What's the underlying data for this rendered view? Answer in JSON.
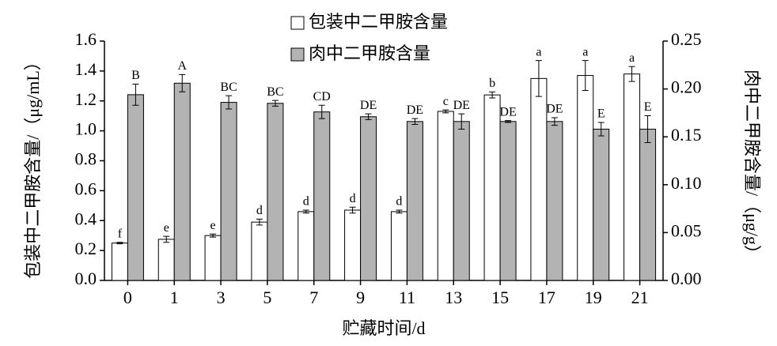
{
  "chart_data": {
    "type": "bar",
    "x_label": "贮藏时间/d",
    "y_label": "包装中二甲胺含量/（μg/mL）",
    "y2_label": "肉中二甲胺含量/（μg/g）",
    "categories": [
      "0",
      "1",
      "3",
      "5",
      "7",
      "9",
      "11",
      "13",
      "15",
      "17",
      "19",
      "21"
    ],
    "series": [
      {
        "name": "包装中二甲胺含量",
        "color": "#ffffff",
        "axis": "y",
        "values": [
          0.25,
          0.275,
          0.3,
          0.39,
          0.46,
          0.47,
          0.46,
          1.13,
          1.24,
          1.35,
          1.37,
          1.38
        ],
        "errors": [
          0.005,
          0.02,
          0.01,
          0.02,
          0.01,
          0.02,
          0.01,
          0.01,
          0.02,
          0.12,
          0.1,
          0.05
        ],
        "letters": [
          "f",
          "e",
          "e",
          "d",
          "d",
          "d",
          "d",
          "c",
          "b",
          "a",
          "a",
          "a"
        ]
      },
      {
        "name": "肉中二甲胺含量",
        "color": "#b3b3b3",
        "axis": "y2",
        "values": [
          0.194,
          0.206,
          0.186,
          0.185,
          0.176,
          0.171,
          0.166,
          0.166,
          0.166,
          0.166,
          0.158,
          0.158
        ],
        "errors": [
          0.011,
          0.009,
          0.007,
          0.003,
          0.007,
          0.003,
          0.003,
          0.008,
          0.001,
          0.004,
          0.007,
          0.014
        ],
        "letters": [
          "B",
          "A",
          "BC",
          "BC",
          "CD",
          "DE",
          "DE",
          "DE",
          "DE",
          "DE",
          "E",
          "E"
        ]
      }
    ],
    "ylim": [
      0,
      1.6
    ],
    "yticks": [
      {
        "value": 0,
        "label": "0.0"
      },
      {
        "value": 0.2,
        "label": "0.2"
      },
      {
        "value": 0.4,
        "label": "0.4"
      },
      {
        "value": 0.6,
        "label": "0.6"
      },
      {
        "value": 0.8,
        "label": "0.8"
      },
      {
        "value": 1.0,
        "label": "1.0"
      },
      {
        "value": 1.2,
        "label": "1.2"
      },
      {
        "value": 1.4,
        "label": "1.4"
      },
      {
        "value": 1.6,
        "label": "1.6"
      }
    ],
    "y2lim": [
      0,
      0.25
    ],
    "y2ticks": [
      {
        "value": 0,
        "label": "0.00"
      },
      {
        "value": 0.05,
        "label": "0.05"
      },
      {
        "value": 0.1,
        "label": "0.10"
      },
      {
        "value": 0.15,
        "label": "0.15"
      },
      {
        "value": 0.2,
        "label": "0.20"
      },
      {
        "value": 0.25,
        "label": "0.25"
      }
    ],
    "legend": "top"
  }
}
